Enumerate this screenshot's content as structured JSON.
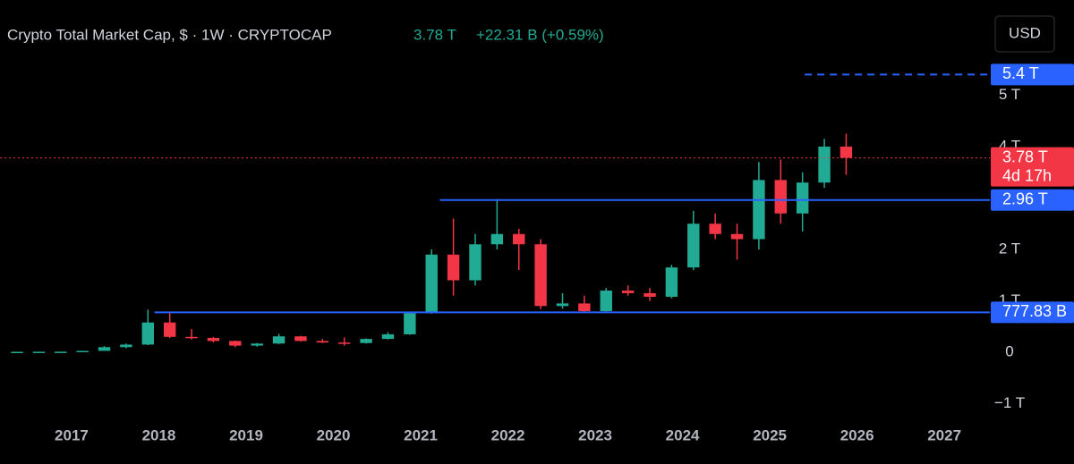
{
  "header": {
    "title": "Crypto Total Market Cap, $ · 1W · CRYPTOCAP",
    "price": "3.78 T",
    "change": "+22.31 B (+0.59%)",
    "currency": "USD"
  },
  "chart_data": {
    "type": "candlestick",
    "up_color": "#22ab94",
    "down_color": "#f23645",
    "x": [
      2016.25,
      2016.5,
      2016.75,
      2017.0,
      2017.25,
      2017.5,
      2017.75,
      2018.0,
      2018.25,
      2018.5,
      2018.75,
      2019.0,
      2019.25,
      2019.5,
      2019.75,
      2020.0,
      2020.25,
      2020.5,
      2020.75,
      2021.0,
      2021.25,
      2021.5,
      2021.75,
      2022.0,
      2022.25,
      2022.5,
      2022.75,
      2023.0,
      2023.25,
      2023.5,
      2023.75,
      2024.0,
      2024.25,
      2024.5,
      2024.75,
      2025.0,
      2025.25,
      2025.5,
      2025.75
    ],
    "open": [
      0.01,
      0.01,
      0.011,
      0.018,
      0.028,
      0.1,
      0.15,
      0.58,
      0.3,
      0.28,
      0.22,
      0.13,
      0.17,
      0.31,
      0.22,
      0.19,
      0.18,
      0.26,
      0.35,
      0.76,
      1.9,
      1.4,
      2.1,
      2.3,
      2.1,
      0.9,
      0.95,
      0.8,
      1.2,
      1.15,
      1.08,
      1.65,
      2.5,
      2.3,
      2.2,
      3.35,
      2.7,
      3.3,
      4.0
    ],
    "high": [
      0.011,
      0.012,
      0.013,
      0.03,
      0.12,
      0.17,
      0.83,
      0.78,
      0.45,
      0.3,
      0.23,
      0.18,
      0.36,
      0.32,
      0.26,
      0.29,
      0.27,
      0.39,
      0.78,
      2.0,
      2.6,
      2.3,
      2.98,
      2.4,
      2.2,
      1.15,
      1.1,
      1.25,
      1.3,
      1.25,
      1.7,
      2.75,
      2.7,
      2.5,
      3.7,
      3.75,
      3.5,
      4.15,
      4.25
    ],
    "low": [
      0.008,
      0.009,
      0.01,
      0.017,
      0.027,
      0.08,
      0.14,
      0.28,
      0.25,
      0.19,
      0.1,
      0.11,
      0.16,
      0.21,
      0.18,
      0.13,
      0.17,
      0.25,
      0.34,
      0.75,
      1.1,
      1.3,
      2.0,
      1.6,
      0.84,
      0.85,
      0.77,
      0.79,
      1.1,
      1.0,
      1.05,
      1.6,
      2.2,
      1.8,
      2.0,
      2.5,
      2.35,
      3.2,
      3.45
    ],
    "close": [
      0.01,
      0.011,
      0.012,
      0.028,
      0.1,
      0.15,
      0.58,
      0.3,
      0.28,
      0.22,
      0.13,
      0.17,
      0.31,
      0.22,
      0.19,
      0.18,
      0.26,
      0.35,
      0.76,
      1.9,
      1.4,
      2.1,
      2.3,
      2.1,
      0.9,
      0.95,
      0.8,
      1.2,
      1.15,
      1.08,
      1.65,
      2.5,
      2.3,
      2.2,
      3.35,
      2.7,
      3.3,
      4.0,
      3.78
    ],
    "xlim": [
      2016.18,
      2027.46
    ],
    "xticks": [
      2017,
      2018,
      2019,
      2020,
      2021,
      2022,
      2023,
      2024,
      2025,
      2026,
      2027
    ],
    "ylim": [
      -1.32,
      6.85
    ],
    "yticks": [
      {
        "value": -1,
        "label": "−1 T"
      },
      0,
      {
        "value": 1,
        "label": "1 T"
      },
      {
        "value": 2,
        "label": "2 T"
      },
      {
        "value": 4,
        "label": "4 T"
      },
      {
        "value": 5,
        "label": "5 T"
      }
    ],
    "levels": [
      {
        "value": 5.4,
        "label": "5.4 T",
        "color": "#2962ff",
        "style": "dashed",
        "from": 2025.4
      },
      {
        "value": 3.78,
        "label": "3.78 T",
        "countdown": "4d 17h",
        "color": "#f23645",
        "style": "dotted"
      },
      {
        "value": 2.96,
        "label": "2.96 T",
        "color": "#2962ff",
        "style": "solid",
        "from": 2021.22
      },
      {
        "value": 0.77783,
        "label": "777.83 B",
        "color": "#2962ff",
        "style": "solid",
        "from": 2017.95
      }
    ]
  }
}
